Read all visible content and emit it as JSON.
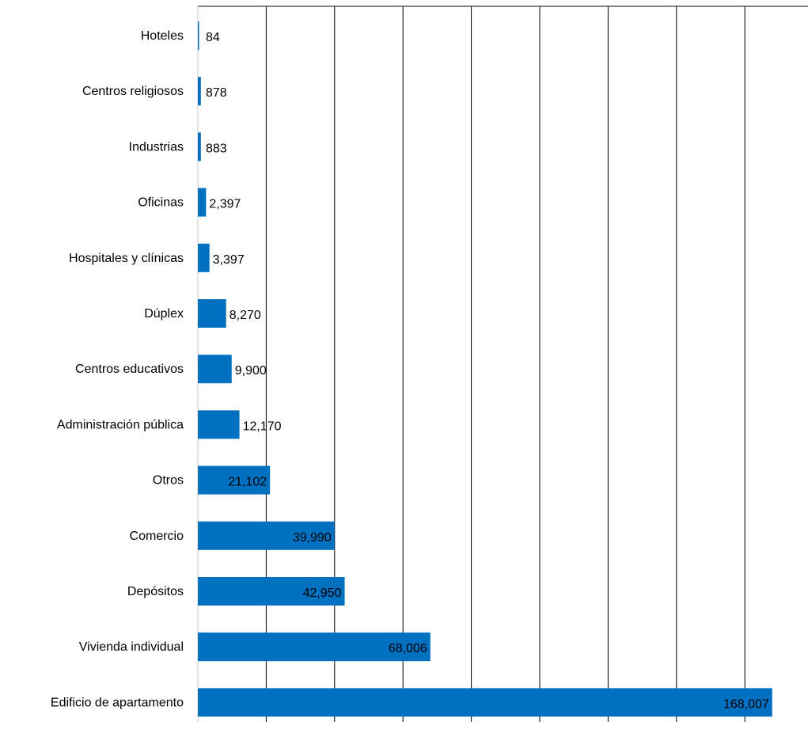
{
  "chart_data": {
    "type": "bar",
    "orientation": "horizontal",
    "categories": [
      "Hoteles",
      "Centros religiosos",
      "Industrias",
      "Oficinas",
      "Hospitales y clínicas",
      "Dúplex",
      "Centros educativos",
      "Administración pública",
      "Otros",
      "Comercio",
      "Depósitos",
      "Vivienda individual",
      "Edificio de apartamento"
    ],
    "values": [
      84,
      878,
      883,
      2397,
      3397,
      8270,
      9900,
      12170,
      21102,
      39990,
      42950,
      68006,
      168007
    ],
    "value_labels": [
      "84",
      "878",
      "883",
      "2,397",
      "3,397",
      "8,270",
      "9,900",
      "12,170",
      "21,102",
      "39,990",
      "42,950",
      "68,006",
      "168,007"
    ],
    "xlim": [
      0,
      180000
    ],
    "x_gridline_step": 20000,
    "grid": true,
    "x_tick_labels_shown": false,
    "bar_color": "#0070c0",
    "title": "",
    "xlabel": "",
    "ylabel": ""
  }
}
